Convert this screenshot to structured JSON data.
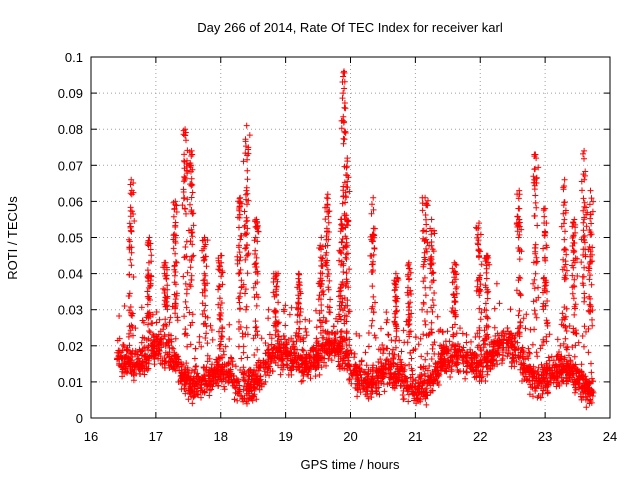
{
  "chart_data": {
    "type": "scatter",
    "title": "Day 266 of 2014, Rate Of TEC Index for receiver karl",
    "xlabel": "GPS time / hours",
    "ylabel": "ROTI / TECUs",
    "xlim": [
      16,
      24
    ],
    "ylim": [
      0,
      0.1
    ],
    "xticks": [
      16,
      17,
      18,
      19,
      20,
      21,
      22,
      23,
      24
    ],
    "xtick_labels": [
      "16",
      "17",
      "18",
      "19",
      "20",
      "21",
      "22",
      "23",
      "24"
    ],
    "yticks": [
      0,
      0.01,
      0.02,
      0.03,
      0.04,
      0.05,
      0.06,
      0.07,
      0.08,
      0.09,
      0.1
    ],
    "ytick_labels": [
      "0",
      "0.01",
      "0.02",
      "0.03",
      "0.04",
      "0.05",
      "0.06",
      "0.07",
      "0.08",
      "0.09",
      "0.1"
    ],
    "grid": true,
    "marker": "+",
    "marker_color": "#ff0000",
    "series": [
      {
        "name": "ROTI",
        "x_range": [
          16.4,
          23.75
        ],
        "baseline_band": [
          0.005,
          0.025
        ],
        "peaks": [
          {
            "x": 16.62,
            "y": 0.066
          },
          {
            "x": 16.9,
            "y": 0.05
          },
          {
            "x": 17.15,
            "y": 0.043
          },
          {
            "x": 17.3,
            "y": 0.06
          },
          {
            "x": 17.45,
            "y": 0.08
          },
          {
            "x": 17.55,
            "y": 0.074
          },
          {
            "x": 17.75,
            "y": 0.05
          },
          {
            "x": 18.0,
            "y": 0.045
          },
          {
            "x": 18.3,
            "y": 0.061
          },
          {
            "x": 18.4,
            "y": 0.081
          },
          {
            "x": 18.55,
            "y": 0.055
          },
          {
            "x": 18.85,
            "y": 0.04
          },
          {
            "x": 19.2,
            "y": 0.04
          },
          {
            "x": 19.55,
            "y": 0.05
          },
          {
            "x": 19.65,
            "y": 0.062
          },
          {
            "x": 19.85,
            "y": 0.055
          },
          {
            "x": 19.9,
            "y": 0.096
          },
          {
            "x": 19.95,
            "y": 0.072
          },
          {
            "x": 20.35,
            "y": 0.061
          },
          {
            "x": 20.7,
            "y": 0.04
          },
          {
            "x": 20.9,
            "y": 0.043
          },
          {
            "x": 21.15,
            "y": 0.061
          },
          {
            "x": 21.25,
            "y": 0.055
          },
          {
            "x": 21.6,
            "y": 0.043
          },
          {
            "x": 21.98,
            "y": 0.054
          },
          {
            "x": 22.1,
            "y": 0.045
          },
          {
            "x": 22.6,
            "y": 0.063
          },
          {
            "x": 22.85,
            "y": 0.073
          },
          {
            "x": 23.0,
            "y": 0.058
          },
          {
            "x": 23.3,
            "y": 0.066
          },
          {
            "x": 23.45,
            "y": 0.055
          },
          {
            "x": 23.6,
            "y": 0.074
          },
          {
            "x": 23.7,
            "y": 0.063
          }
        ]
      }
    ]
  }
}
